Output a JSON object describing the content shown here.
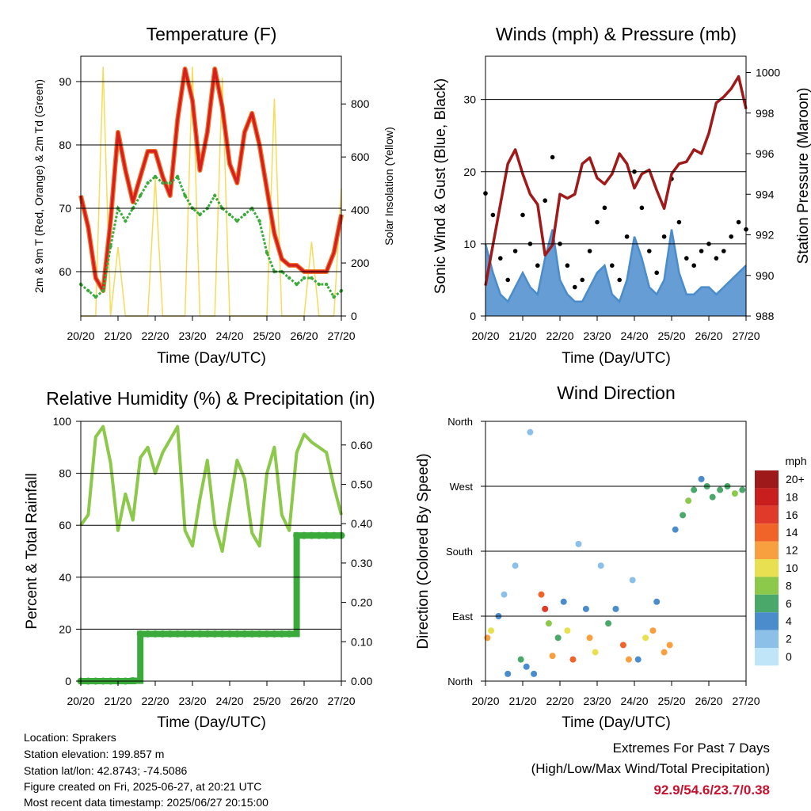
{
  "x_ticks": [
    "20/20",
    "21/20",
    "22/20",
    "23/20",
    "24/20",
    "25/20",
    "26/20",
    "27/20"
  ],
  "chart_data": [
    {
      "type": "line",
      "title": "Temperature (F)",
      "xlabel": "Time (Day/UTC)",
      "ylabel": "2m & 9m T (Red, Orange) & 2m Td (Green)",
      "ylabel_right": "Solar Insolation (Yellow)",
      "ylim": [
        53,
        94
      ],
      "ylim_right": [
        0,
        980
      ],
      "yticks": [
        60,
        70,
        80,
        90
      ],
      "yticks_right": [
        0,
        200,
        400,
        600,
        800
      ],
      "colors": {
        "t2m": "#d62020",
        "t9m": "#f07a2a",
        "td": "#3aaa3a",
        "solar": "#f5dc5a"
      },
      "x": [
        0,
        0.2,
        0.4,
        0.6,
        0.8,
        1,
        1.2,
        1.4,
        1.6,
        1.8,
        2,
        2.2,
        2.4,
        2.6,
        2.8,
        3,
        3.2,
        3.4,
        3.6,
        3.8,
        4,
        4.2,
        4.4,
        4.6,
        4.8,
        5,
        5.2,
        5.4,
        5.6,
        5.8,
        6,
        6.2,
        6.4,
        6.6,
        6.8,
        7
      ],
      "series": [
        {
          "name": "2m T",
          "values": [
            72,
            67,
            59,
            57,
            68,
            82,
            76,
            71,
            75,
            79,
            79,
            75,
            72,
            84,
            92,
            87,
            76,
            82,
            92,
            86,
            77,
            74,
            82,
            85,
            80,
            73,
            66,
            62,
            61,
            61,
            60,
            60,
            60,
            60,
            63,
            69
          ]
        },
        {
          "name": "9m T",
          "values": [
            72,
            67,
            59,
            57,
            68,
            82,
            76,
            71,
            75,
            79,
            79,
            75,
            72,
            84,
            92,
            87,
            76,
            82,
            92,
            86,
            77,
            74,
            82,
            85,
            80,
            73,
            66,
            62,
            61,
            61,
            60,
            60,
            60,
            60,
            63,
            69
          ]
        },
        {
          "name": "2m Td",
          "values": [
            58,
            57,
            56,
            57,
            64,
            70,
            68,
            70,
            72,
            74,
            75,
            74,
            74,
            75,
            72,
            70,
            69,
            70,
            72,
            70,
            69,
            68,
            69,
            70,
            68,
            63,
            60,
            60,
            59,
            58,
            59,
            59,
            58,
            58,
            56,
            57
          ]
        },
        {
          "name": "Solar",
          "values": [
            0,
            0,
            0,
            940,
            0,
            260,
            0,
            0,
            0,
            0,
            520,
            0,
            0,
            0,
            0,
            940,
            0,
            0,
            0,
            900,
            0,
            0,
            0,
            0,
            0,
            0,
            820,
            0,
            0,
            0,
            0,
            280,
            0,
            0,
            0,
            480
          ]
        }
      ]
    },
    {
      "type": "line",
      "title": "Winds (mph) & Pressure (mb)",
      "xlabel": "Time (Day/UTC)",
      "ylabel": "Sonic Wind & Gust (Blue, Black)",
      "ylabel_right": "Station Pressure (Maroon)",
      "ylim": [
        0,
        36
      ],
      "ylim_right": [
        988,
        1000.8
      ],
      "yticks": [
        0,
        10,
        20,
        30
      ],
      "yticks_right": [
        988,
        990,
        992,
        994,
        996,
        998,
        1000
      ],
      "colors": {
        "wind": "#4a8ccc",
        "gust": "#000000",
        "pressure": "#a01a1a"
      },
      "x": [
        0,
        0.2,
        0.4,
        0.6,
        0.8,
        1,
        1.2,
        1.4,
        1.6,
        1.8,
        2,
        2.2,
        2.4,
        2.6,
        2.8,
        3,
        3.2,
        3.4,
        3.6,
        3.8,
        4,
        4.2,
        4.4,
        4.6,
        4.8,
        5,
        5.2,
        5.4,
        5.6,
        5.8,
        6,
        6.2,
        6.4,
        6.6,
        6.8,
        7
      ],
      "series": [
        {
          "name": "Wind",
          "values": [
            10,
            6,
            3,
            2,
            4,
            6,
            4,
            3,
            8,
            12,
            5,
            3,
            2,
            2,
            4,
            6,
            7,
            3,
            2,
            5,
            11,
            8,
            4,
            3,
            5,
            12,
            6,
            3,
            3,
            4,
            4,
            3,
            4,
            5,
            6,
            7
          ]
        },
        {
          "name": "Gust",
          "values": [
            17,
            14,
            8,
            5,
            9,
            14,
            10,
            7,
            16,
            22,
            10,
            7,
            4,
            5,
            9,
            13,
            15,
            7,
            5,
            11,
            20,
            15,
            9,
            6,
            11,
            19,
            13,
            8,
            7,
            9,
            10,
            8,
            9,
            11,
            13,
            12
          ]
        },
        {
          "name": "Pressure",
          "values": [
            989.5,
            991.5,
            993.5,
            995.5,
            996.2,
            995,
            994,
            993.5,
            991,
            991.5,
            994,
            993.8,
            994,
            995.5,
            995.8,
            994.8,
            994.5,
            995,
            996,
            995.5,
            994.3,
            995,
            995.2,
            994.2,
            993.3,
            995,
            995.5,
            995.6,
            996.2,
            996,
            997,
            998.5,
            998.8,
            999.2,
            999.8,
            998.2
          ]
        }
      ]
    },
    {
      "type": "line",
      "title": "Relative Humidity (%) & Precipitation (in)",
      "xlabel": "Time (Day/UTC)",
      "ylabel": "Percent & Total Rainfall",
      "ylim": [
        0,
        100
      ],
      "ylim_right": [
        0,
        0.66
      ],
      "yticks": [
        0,
        20,
        40,
        60,
        80,
        100
      ],
      "yticks_right": [
        "0.00",
        "0.10",
        "0.20",
        "0.30",
        "0.40",
        "0.50",
        "0.60"
      ],
      "colors": {
        "rh": "#8cc84a",
        "precip": "#3aaa3a"
      },
      "x": [
        0,
        0.2,
        0.4,
        0.6,
        0.8,
        1,
        1.2,
        1.4,
        1.6,
        1.8,
        2,
        2.2,
        2.4,
        2.6,
        2.8,
        3,
        3.2,
        3.4,
        3.6,
        3.8,
        4,
        4.2,
        4.4,
        4.6,
        4.8,
        5,
        5.2,
        5.4,
        5.6,
        5.8,
        6,
        6.2,
        6.4,
        6.6,
        6.8,
        7
      ],
      "series": [
        {
          "name": "RH",
          "values": [
            60,
            64,
            94,
            98,
            84,
            58,
            72,
            62,
            86,
            90,
            80,
            88,
            93,
            98,
            58,
            52,
            70,
            85,
            60,
            50,
            68,
            85,
            78,
            57,
            52,
            80,
            90,
            64,
            58,
            88,
            95,
            92,
            90,
            88,
            75,
            64
          ]
        },
        {
          "name": "Total Precip",
          "values": [
            0,
            0,
            0,
            0,
            0,
            0,
            0,
            0.001,
            0.12,
            0.12,
            0.12,
            0.12,
            0.12,
            0.12,
            0.12,
            0.12,
            0.12,
            0.12,
            0.12,
            0.12,
            0.12,
            0.12,
            0.12,
            0.12,
            0.12,
            0.12,
            0.12,
            0.12,
            0.12,
            0.37,
            0.37,
            0.37,
            0.37,
            0.37,
            0.37,
            0.37
          ]
        }
      ]
    },
    {
      "type": "scatter",
      "title": "Wind Direction",
      "xlabel": "Time (Day/UTC)",
      "ylabel": "Direction (Colored By Speed)",
      "yticks": [
        "North",
        "West",
        "South",
        "East",
        "North"
      ],
      "legend_title": "mph",
      "legend_labels": [
        "20+",
        "18",
        "16",
        "14",
        "12",
        "10",
        "8",
        "6",
        "4",
        "2",
        "0"
      ],
      "legend_colors": [
        "#9e1a1a",
        "#c81e1e",
        "#e03a2a",
        "#f0642a",
        "#f8a040",
        "#e8e050",
        "#8cc84a",
        "#4aa86a",
        "#4a8ccc",
        "#8cc0e8",
        "#c0e4f8"
      ],
      "x": [
        0.05,
        0.15,
        0.35,
        0.5,
        0.6,
        0.8,
        0.95,
        1.1,
        1.2,
        1.3,
        1.5,
        1.6,
        1.7,
        1.8,
        1.95,
        2.1,
        2.2,
        2.35,
        2.5,
        2.7,
        2.8,
        2.95,
        3.1,
        3.3,
        3.5,
        3.7,
        3.85,
        3.95,
        4.1,
        4.3,
        4.5,
        4.6,
        4.8,
        4.95,
        5.1,
        5.3,
        5.45,
        5.6,
        5.8,
        5.95,
        6.1,
        6.3,
        6.5,
        6.7,
        6.9
      ],
      "series": [
        {
          "name": "Direction",
          "values": [
            300,
            290,
            270,
            240,
            350,
            200,
            330,
            340,
            15,
            350,
            240,
            260,
            280,
            325,
            300,
            250,
            290,
            330,
            170,
            260,
            300,
            320,
            200,
            280,
            260,
            310,
            330,
            220,
            330,
            300,
            290,
            250,
            320,
            310,
            150,
            130,
            110,
            95,
            80,
            90,
            105,
            95,
            90,
            100,
            95
          ]
        },
        {
          "name": "Speed",
          "values": [
            12,
            10,
            3,
            2,
            3,
            1,
            5,
            3,
            2,
            4,
            14,
            16,
            8,
            12,
            6,
            3,
            10,
            14,
            2,
            3,
            12,
            9,
            2,
            5,
            3,
            13,
            12,
            2,
            4,
            10,
            12,
            4,
            12,
            11,
            3,
            5,
            7,
            6,
            4,
            5,
            6,
            5,
            6,
            7,
            6
          ]
        }
      ]
    }
  ],
  "info": {
    "location": "Location: Sprakers",
    "elevation": "Station elevation: 199.857 m",
    "latlon": "Station lat/lon: 42.8743; -74.5086",
    "created": "Figure created on Fri, 2025-06-27, at 20:21 UTC",
    "recent": "Most recent data timestamp: 2025/06/27 20:15:00"
  },
  "extremes": {
    "line1": "Extremes For Past 7 Days",
    "line2": "(High/Low/Max Wind/Total Precipitation)",
    "values": "92.9/54.6/23.7/0.38"
  }
}
